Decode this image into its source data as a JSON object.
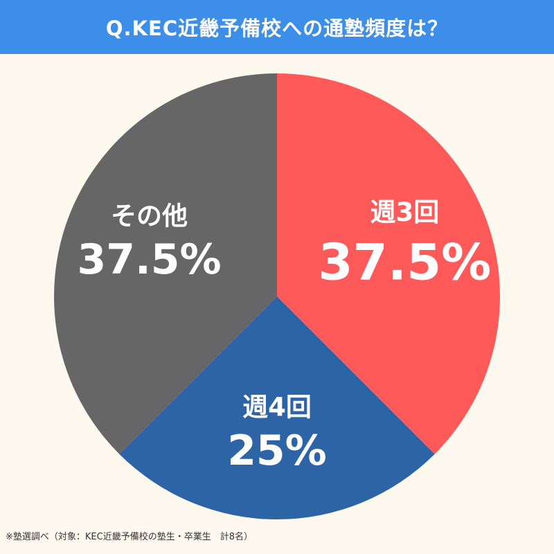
{
  "title": "Q.KEC近畿予備校への通塾頻度は？",
  "footnote": "※塾選調べ（対象：KEC近畿予備校の塾生・卒業生　計8名）",
  "colors": {
    "title_bar": "#3d8ee8",
    "background": "#fdf9ef",
    "label_text": "#ffffff"
  },
  "chart_data": {
    "type": "pie",
    "title": "Q.KEC近畿予備校への通塾頻度は？",
    "start": "12 o'clock",
    "direction": "clockwise",
    "legend": "none",
    "slices": [
      {
        "label": "週3回",
        "value": 37.5,
        "value_label": "37.5%",
        "color": "#fe5a59"
      },
      {
        "label": "週4回",
        "value": 25,
        "value_label": "25%",
        "color": "#2d64a6"
      },
      {
        "label": "その他",
        "value": 37.5,
        "value_label": "37.5%",
        "color": "#666666"
      }
    ]
  }
}
